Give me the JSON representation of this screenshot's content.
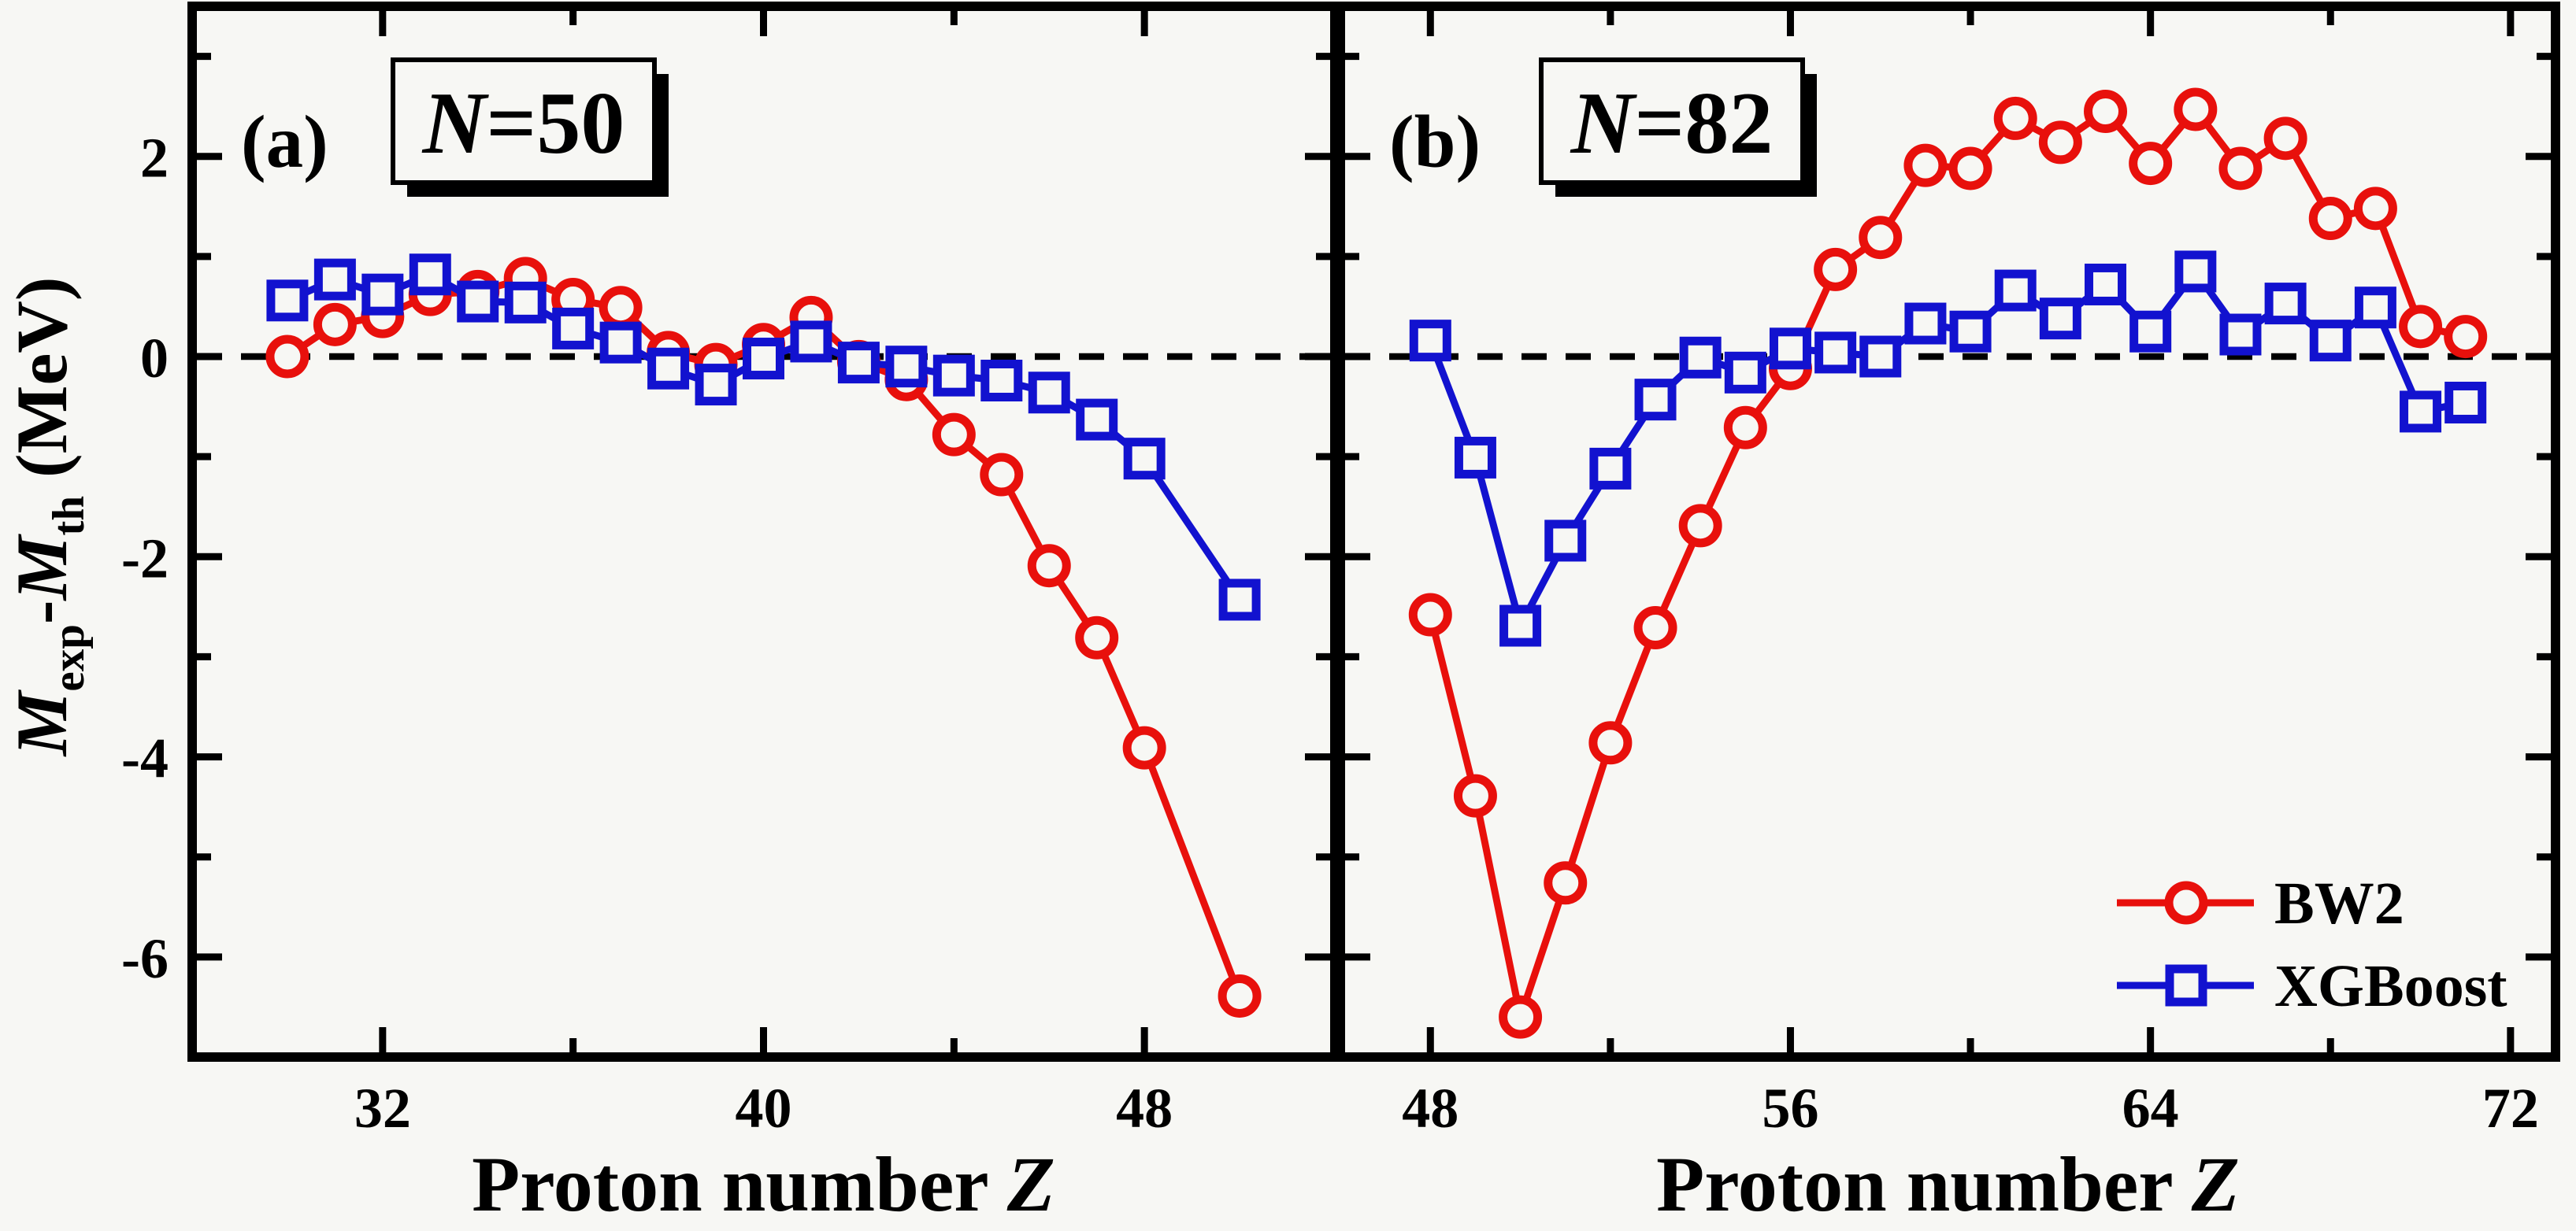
{
  "figure": {
    "background": "#f7f7f4",
    "axis_color": "#000000",
    "zero_line": {
      "style": "dashed",
      "value": 0,
      "color": "#000000"
    },
    "y_axis": {
      "title": {
        "var1": "M",
        "sub1": "exp",
        "minus": "-",
        "var2": "M",
        "sub2": "th",
        "units": " (MeV)",
        "plain": "Mexp-Mth (MeV)"
      },
      "tick_labels": [
        "2",
        "0",
        "-2",
        "-4",
        "-6"
      ],
      "major_ticks": [
        2,
        0,
        -2,
        -4,
        -6
      ],
      "minor_ticks": [
        3,
        1,
        -1,
        -3,
        -5
      ],
      "range": [
        -7,
        3.5
      ]
    },
    "panels": [
      {
        "id": "a",
        "letter": "(a)",
        "annotation_var": "N",
        "annotation_val": "=50",
        "annotation": "N=50",
        "x_title_main": "Proton number ",
        "x_title_var": "Z",
        "x_title": "Proton number Z",
        "x_range": [
          28,
          52
        ],
        "x_major_ticks": [
          32,
          40,
          48
        ],
        "x_tick_labels": [
          "32",
          "40",
          "48"
        ],
        "x_minor_ticks": [
          36,
          44
        ]
      },
      {
        "id": "b",
        "letter": "(b)",
        "annotation_var": "N",
        "annotation_val": "=82",
        "annotation": "N=82",
        "x_title_main": "Proton number ",
        "x_title_var": "Z",
        "x_title": "Proton number Z",
        "x_range": [
          46,
          73
        ],
        "x_major_ticks": [
          48,
          56,
          64,
          72
        ],
        "x_tick_labels": [
          "48",
          "56",
          "64",
          "72"
        ],
        "x_minor_ticks": [
          52,
          60,
          68
        ]
      }
    ],
    "legend": {
      "items": [
        {
          "label": "BW2",
          "color": "#e8100c",
          "marker": "circle"
        },
        {
          "label": "XGBoost",
          "color": "#1212cf",
          "marker": "square"
        }
      ]
    },
    "series_style": {
      "bw2_color": "#e8100c",
      "xgboost_color": "#1212cf",
      "marker_fill": "#f7f7f4"
    }
  },
  "chart_data": [
    {
      "type": "line",
      "panel": "a",
      "title": "N=50",
      "xlabel": "Proton number Z",
      "ylabel": "Mexp-Mth (MeV)",
      "xlim": [
        28,
        52
      ],
      "ylim": [
        -7,
        3.5
      ],
      "grid": false,
      "x": [
        30,
        31,
        32,
        33,
        34,
        35,
        36,
        37,
        38,
        39,
        40,
        41,
        42,
        43,
        44,
        45,
        46,
        47,
        48,
        50
      ],
      "series": [
        {
          "name": "BW2",
          "marker": "circle",
          "color": "#e8100c",
          "values": [
            0.0,
            0.32,
            0.4,
            0.62,
            0.65,
            0.78,
            0.57,
            0.49,
            0.04,
            -0.08,
            0.12,
            0.39,
            -0.05,
            -0.23,
            -0.78,
            -1.18,
            -2.09,
            -2.81,
            -3.91,
            -6.39
          ]
        },
        {
          "name": "XGBoost",
          "marker": "square",
          "color": "#1212cf",
          "values": [
            0.56,
            0.77,
            0.62,
            0.82,
            0.55,
            0.54,
            0.28,
            0.14,
            -0.12,
            -0.28,
            -0.02,
            0.15,
            -0.06,
            -0.1,
            -0.19,
            -0.24,
            -0.36,
            -0.63,
            -1.02,
            -2.43
          ]
        }
      ]
    },
    {
      "type": "line",
      "panel": "b",
      "title": "N=82",
      "xlabel": "Proton number Z",
      "ylabel": "Mexp-Mth (MeV)",
      "xlim": [
        46,
        73
      ],
      "ylim": [
        -7,
        3.5
      ],
      "grid": false,
      "x": [
        48,
        49,
        50,
        51,
        52,
        53,
        54,
        55,
        56,
        57,
        58,
        59,
        60,
        61,
        62,
        63,
        64,
        65,
        66,
        67,
        68,
        69,
        70,
        71
      ],
      "series": [
        {
          "name": "BW2",
          "marker": "circle",
          "color": "#e8100c",
          "values": [
            -2.58,
            -4.39,
            -6.6,
            -5.26,
            -3.86,
            -2.71,
            -1.69,
            -0.71,
            -0.12,
            0.87,
            1.19,
            1.91,
            1.88,
            2.38,
            2.14,
            2.45,
            1.93,
            2.47,
            1.88,
            2.18,
            1.38,
            1.48,
            0.3,
            0.2
          ]
        },
        {
          "name": "XGBoost",
          "marker": "square",
          "color": "#1212cf",
          "values": [
            0.16,
            -1.01,
            -2.69,
            -1.84,
            -1.12,
            -0.43,
            -0.01,
            -0.16,
            0.08,
            0.04,
            0.0,
            0.33,
            0.25,
            0.66,
            0.38,
            0.72,
            0.25,
            0.85,
            0.22,
            0.53,
            0.16,
            0.49,
            -0.55,
            -0.46
          ]
        }
      ]
    }
  ]
}
